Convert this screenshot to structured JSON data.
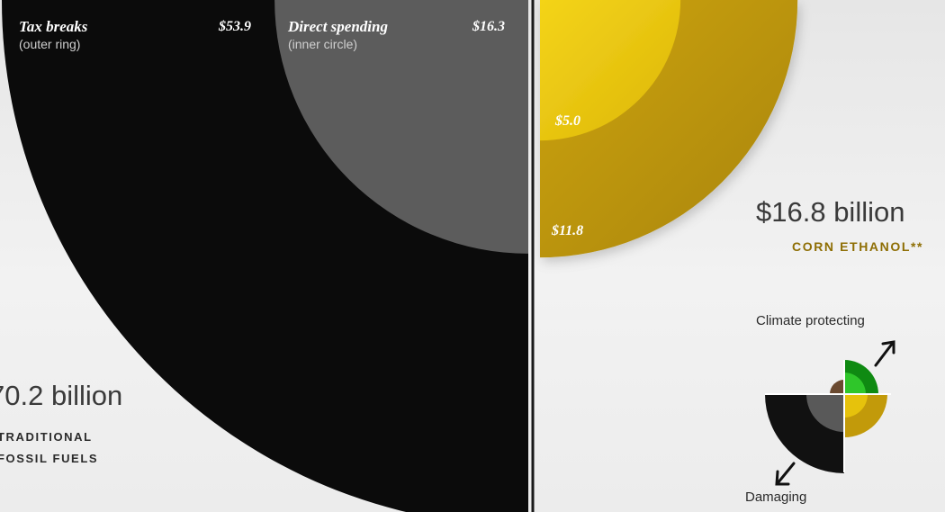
{
  "chart_data": [
    {
      "type": "pie",
      "panel": "left",
      "legend": [
        {
          "label": "Tax breaks",
          "sublabel": "(outer ring)",
          "value_label": "$53.9"
        },
        {
          "label": "Direct spending",
          "sublabel": "(inner circle)",
          "value_label": "$16.3"
        }
      ],
      "values": {
        "tax_breaks": 53.9,
        "direct_spending": 16.3
      },
      "total_label": "70.2 billion",
      "category_lines": [
        "TRADITIONAL",
        "FOSSIL FUELS"
      ],
      "colors": {
        "outer": "#0b0b0b",
        "inner": "#5c5c5c"
      }
    },
    {
      "type": "pie",
      "panel": "right",
      "values": {
        "direct_spending": 5.0,
        "tax_breaks": 11.8
      },
      "value_labels": {
        "direct_spending": "$5.0",
        "tax_breaks": "$11.8"
      },
      "total_label": "$16.8 billion",
      "category": "CORN ETHANOL**",
      "colors": {
        "outer": "#bb9508",
        "inner": "#e6c20c",
        "category_text": "#8e6e04"
      }
    }
  ],
  "key": {
    "top_label": "Climate protecting",
    "bottom_label": "Damaging",
    "colors": {
      "green_outer": "#0f8a12",
      "green_inner": "#2fc62a",
      "brown": "#6a4a30",
      "black": "#111111",
      "gray": "#595959",
      "gold_outer": "#c29a0a",
      "gold_inner": "#e6c20c"
    }
  }
}
